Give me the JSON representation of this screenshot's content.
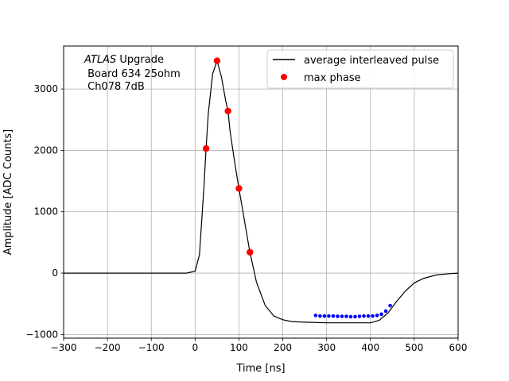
{
  "chart_data": {
    "type": "scatter",
    "title": "",
    "xlabel": "Time [ns]",
    "ylabel": "Amplitude [ADC Counts]",
    "xlim": [
      -300,
      600
    ],
    "ylim": [
      -1060,
      3700
    ],
    "xticks": [
      -300,
      -200,
      -100,
      0,
      100,
      200,
      300,
      400,
      500,
      600
    ],
    "xtick_labels": [
      "−300",
      "−200",
      "−100",
      "0",
      "100",
      "200",
      "300",
      "400",
      "500",
      "600"
    ],
    "yticks": [
      -1000,
      0,
      1000,
      2000,
      3000
    ],
    "ytick_labels": [
      "−1000",
      "0",
      "1000",
      "2000",
      "3000"
    ],
    "grid": true,
    "legend_position": "top-right",
    "annotation": {
      "experiment": "ATLAS",
      "experiment_suffix": " Upgrade",
      "line2": " Board 634 25ohm",
      "line3": " Ch078 7dB"
    },
    "series": [
      {
        "name": "average interleaved pulse",
        "style": "line",
        "color": "#000000",
        "x": [
          -300,
          -200,
          -100,
          -20,
          0,
          10,
          20,
          25,
          30,
          40,
          50,
          60,
          70,
          75,
          80,
          90,
          100,
          110,
          125,
          140,
          160,
          180,
          200,
          220,
          250,
          300,
          350,
          400,
          420,
          440,
          460,
          480,
          500,
          520,
          550,
          580,
          600
        ],
        "y": [
          0,
          0,
          0,
          0,
          30,
          300,
          1400,
          2030,
          2600,
          3250,
          3460,
          3200,
          2800,
          2640,
          2300,
          1820,
          1380,
          960,
          340,
          -150,
          -530,
          -700,
          -760,
          -790,
          -800,
          -810,
          -810,
          -810,
          -770,
          -650,
          -460,
          -290,
          -160,
          -90,
          -30,
          -10,
          0
        ]
      },
      {
        "name": "max phase",
        "style": "marker",
        "color": "#ff0000",
        "x": [
          25,
          50,
          75,
          100,
          125
        ],
        "y": [
          2030,
          3460,
          2640,
          1380,
          340
        ]
      }
    ],
    "sample_series": {
      "color": "#0000ff",
      "x": [
        275,
        285,
        295,
        305,
        315,
        325,
        335,
        345,
        355,
        365,
        375,
        385,
        395,
        405,
        415,
        425,
        435,
        445
      ],
      "y": [
        -690,
        -700,
        -700,
        -700,
        -700,
        -705,
        -705,
        -705,
        -710,
        -710,
        -705,
        -700,
        -700,
        -700,
        -690,
        -670,
        -620,
        -530
      ]
    }
  }
}
